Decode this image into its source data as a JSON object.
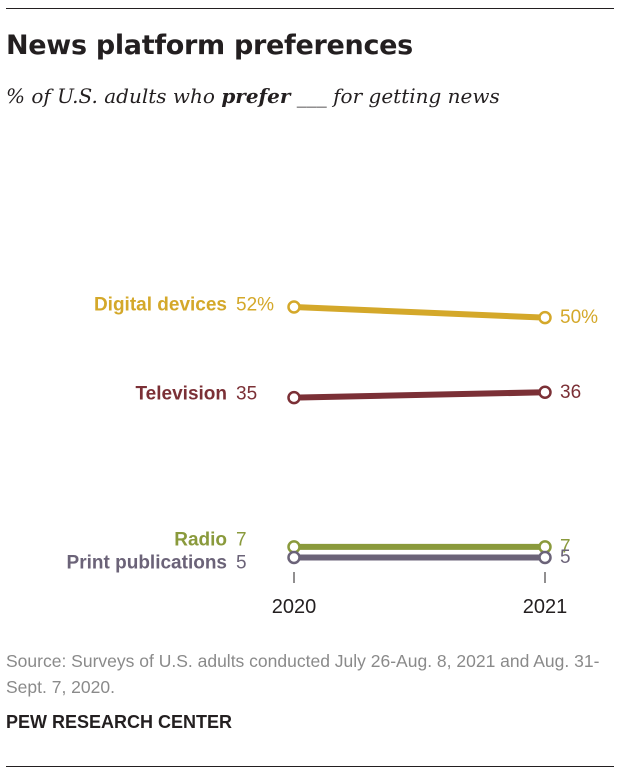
{
  "header": {
    "title": "News platform preferences",
    "subtitle_before": "% of U.S. adults who ",
    "subtitle_bold": "prefer",
    "subtitle_after": " ___ for getting news"
  },
  "chart_data": {
    "type": "line",
    "x": [
      "2020",
      "2021"
    ],
    "series": [
      {
        "name": "Digital devices",
        "values": [
          52,
          50
        ],
        "start_label": "52%",
        "end_label": "50%",
        "color": "#d4a82a"
      },
      {
        "name": "Television",
        "values": [
          35,
          36
        ],
        "start_label": "35",
        "end_label": "36",
        "color": "#7b3036"
      },
      {
        "name": "Radio",
        "values": [
          7,
          7
        ],
        "start_label": "7",
        "end_label": "7",
        "color": "#8a9a3c"
      },
      {
        "name": "Print publications",
        "values": [
          5,
          5
        ],
        "start_label": "5",
        "end_label": "5",
        "color": "#6b6378"
      }
    ],
    "ylim": [
      5,
      52
    ],
    "grid": false,
    "legend": "inline-left"
  },
  "footer": {
    "source": "Source: Surveys of U.S. adults conducted July 26-Aug. 8, 2021 and Aug. 31-Sept. 7, 2020.",
    "credit": "PEW RESEARCH CENTER"
  }
}
